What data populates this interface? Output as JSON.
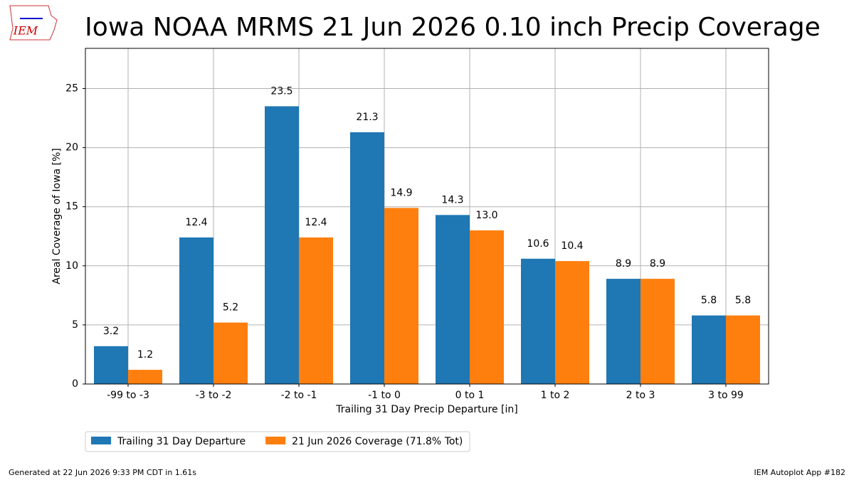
{
  "chart_data": {
    "type": "bar",
    "title": "Iowa NOAA MRMS 21 Jun 2026 0.10 inch Precip Coverage",
    "x_label": "Trailing 31 Day Precip Departure [in]",
    "y_label": "Areal Coverage of Iowa [%]",
    "categories": [
      "-99 to -3",
      "-3 to -2",
      "-2 to -1",
      "-1 to 0",
      "0 to 1",
      "1 to 2",
      "2 to 3",
      "3 to 99"
    ],
    "series": [
      {
        "name": "Trailing 31 Day Departure",
        "color": "#1f77b4",
        "values": [
          3.2,
          12.4,
          23.5,
          21.3,
          14.3,
          10.6,
          8.9,
          5.8
        ],
        "value_labels": [
          "3.2",
          "12.4",
          "23.5",
          "21.3",
          "14.3",
          "10.6",
          "8.9",
          "5.8"
        ]
      },
      {
        "name": "21 Jun 2026 Coverage (71.8% Tot)",
        "color": "#ff7f0e",
        "values": [
          1.2,
          5.2,
          12.4,
          14.9,
          13.0,
          10.4,
          8.9,
          5.8
        ],
        "value_labels": [
          "1.2",
          "5.2",
          "12.4",
          "14.9",
          "13.0",
          "10.4",
          "8.9",
          "5.8"
        ]
      }
    ],
    "ylim": [
      0,
      28.4
    ],
    "yticks": [
      0,
      5,
      10,
      15,
      20,
      25
    ],
    "grid": true,
    "legend": "below",
    "logo": "IEM",
    "footer_left": "Generated at 22 Jun 2026 9:33 PM CDT in 1.61s",
    "footer_right": "IEM Autoplot App #182"
  }
}
